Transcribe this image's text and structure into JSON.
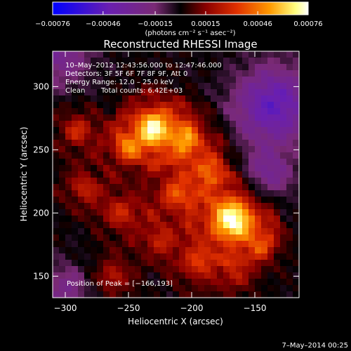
{
  "chart_data": {
    "type": "heatmap",
    "title": "Reconstructed RHESSI Image",
    "xlabel": "Heliocentric X (arcsec)",
    "ylabel": "Heliocentric Y (arcsec)",
    "xlim": [
      -310,
      -115
    ],
    "ylim": [
      133,
      328
    ],
    "x_ticks": [
      -300,
      -250,
      -200,
      -150
    ],
    "x_tick_labels": [
      "−300",
      "−250",
      "−200",
      "−150"
    ],
    "y_ticks": [
      150,
      200,
      250,
      300
    ],
    "y_tick_labels": [
      "150",
      "200",
      "250",
      "300"
    ],
    "colorbar": {
      "range": [
        -0.00076,
        0.00076
      ],
      "ticks": [
        -0.00076,
        -0.00046,
        -0.00015,
        0.00015,
        0.00046,
        0.00076
      ],
      "tick_labels": [
        "−0.00076",
        "−0.00046",
        "−0.00015",
        "0.00015",
        "0.00046",
        "0.00076"
      ],
      "unit_label": "(photons cm⁻² s⁻¹ asec⁻²)"
    },
    "annotations": {
      "time": "10–May–2012 12:43:56.000 to 12:47:46.000",
      "detectors": "Detectors: 3F 5F 6F 7F 8F 9F, Att 0",
      "energy": "Energy Range: 12.0 – 25.0 keV",
      "method": "Clean",
      "counts": "Total counts: 6.42E+03",
      "peak": "Position of Peak = [−166,193]"
    },
    "peak": {
      "x": -166,
      "y": 193
    },
    "sources": [
      {
        "x": -168,
        "y": 195,
        "amp": 1.0,
        "sigma": 14
      },
      {
        "x": -230,
        "y": 268,
        "amp": 0.78,
        "sigma": 12
      },
      {
        "x": -205,
        "y": 258,
        "amp": 0.55,
        "sigma": 12
      },
      {
        "x": -250,
        "y": 252,
        "amp": 0.5,
        "sigma": 10
      },
      {
        "x": -212,
        "y": 215,
        "amp": 0.5,
        "sigma": 11
      },
      {
        "x": -185,
        "y": 235,
        "amp": 0.45,
        "sigma": 10
      },
      {
        "x": -290,
        "y": 265,
        "amp": 0.38,
        "sigma": 9
      },
      {
        "x": -255,
        "y": 200,
        "amp": 0.38,
        "sigma": 10
      },
      {
        "x": -195,
        "y": 160,
        "amp": 0.42,
        "sigma": 10
      },
      {
        "x": -145,
        "y": 175,
        "amp": 0.35,
        "sigma": 9
      },
      {
        "x": -262,
        "y": 150,
        "amp": 0.32,
        "sigma": 9
      },
      {
        "x": -285,
        "y": 220,
        "amp": 0.35,
        "sigma": 9
      },
      {
        "x": -225,
        "y": 178,
        "amp": 0.36,
        "sigma": 9
      },
      {
        "x": -165,
        "y": 150,
        "amp": 0.3,
        "sigma": 8
      }
    ],
    "dark_regions": [
      {
        "x": -135,
        "y": 285,
        "amp": 0.6,
        "sigma": 22
      },
      {
        "x": -140,
        "y": 230,
        "amp": 0.35,
        "sigma": 14
      },
      {
        "x": -305,
        "y": 325,
        "amp": 0.35,
        "sigma": 18
      },
      {
        "x": -300,
        "y": 140,
        "amp": 0.3,
        "sigma": 14
      }
    ]
  },
  "footer": {
    "timestamp": "7–May–2014 00:25"
  }
}
